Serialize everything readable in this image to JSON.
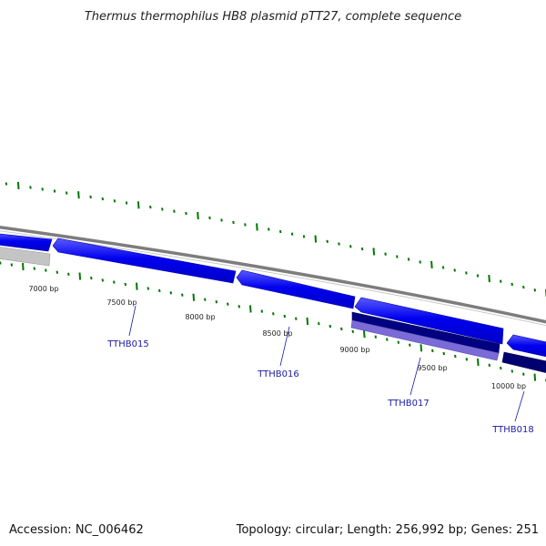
{
  "title": "Thermus thermophilus HB8 plasmid pTT27, complete sequence",
  "accession_text": "Accession: NC_006462",
  "summary_text": "Topology: circular; Length: 256,992 bp; Genes: 251",
  "colors": {
    "backbone": "#888888",
    "tick": "#007700",
    "forward_gene": "#0000ee",
    "reverse_gene": "#00007a",
    "reverse_gene_alt": "#7b6bd6",
    "grey_feature": "#bbbbbb",
    "gene_label": "#1a1aa6"
  },
  "ruler": {
    "labels": [
      {
        "text": "7000 bp",
        "bp": 7000
      },
      {
        "text": "7500 bp",
        "bp": 7500
      },
      {
        "text": "8000 bp",
        "bp": 8000
      },
      {
        "text": "8500 bp",
        "bp": 8500
      },
      {
        "text": "9000 bp",
        "bp": 9000
      },
      {
        "text": "9500 bp",
        "bp": 9500
      },
      {
        "text": "10000 bp",
        "bp": 10000
      }
    ]
  },
  "genes": [
    {
      "label": "TTHB015"
    },
    {
      "label": "TTHB016"
    },
    {
      "label": "TTHB017"
    },
    {
      "label": "TTHB018"
    }
  ]
}
